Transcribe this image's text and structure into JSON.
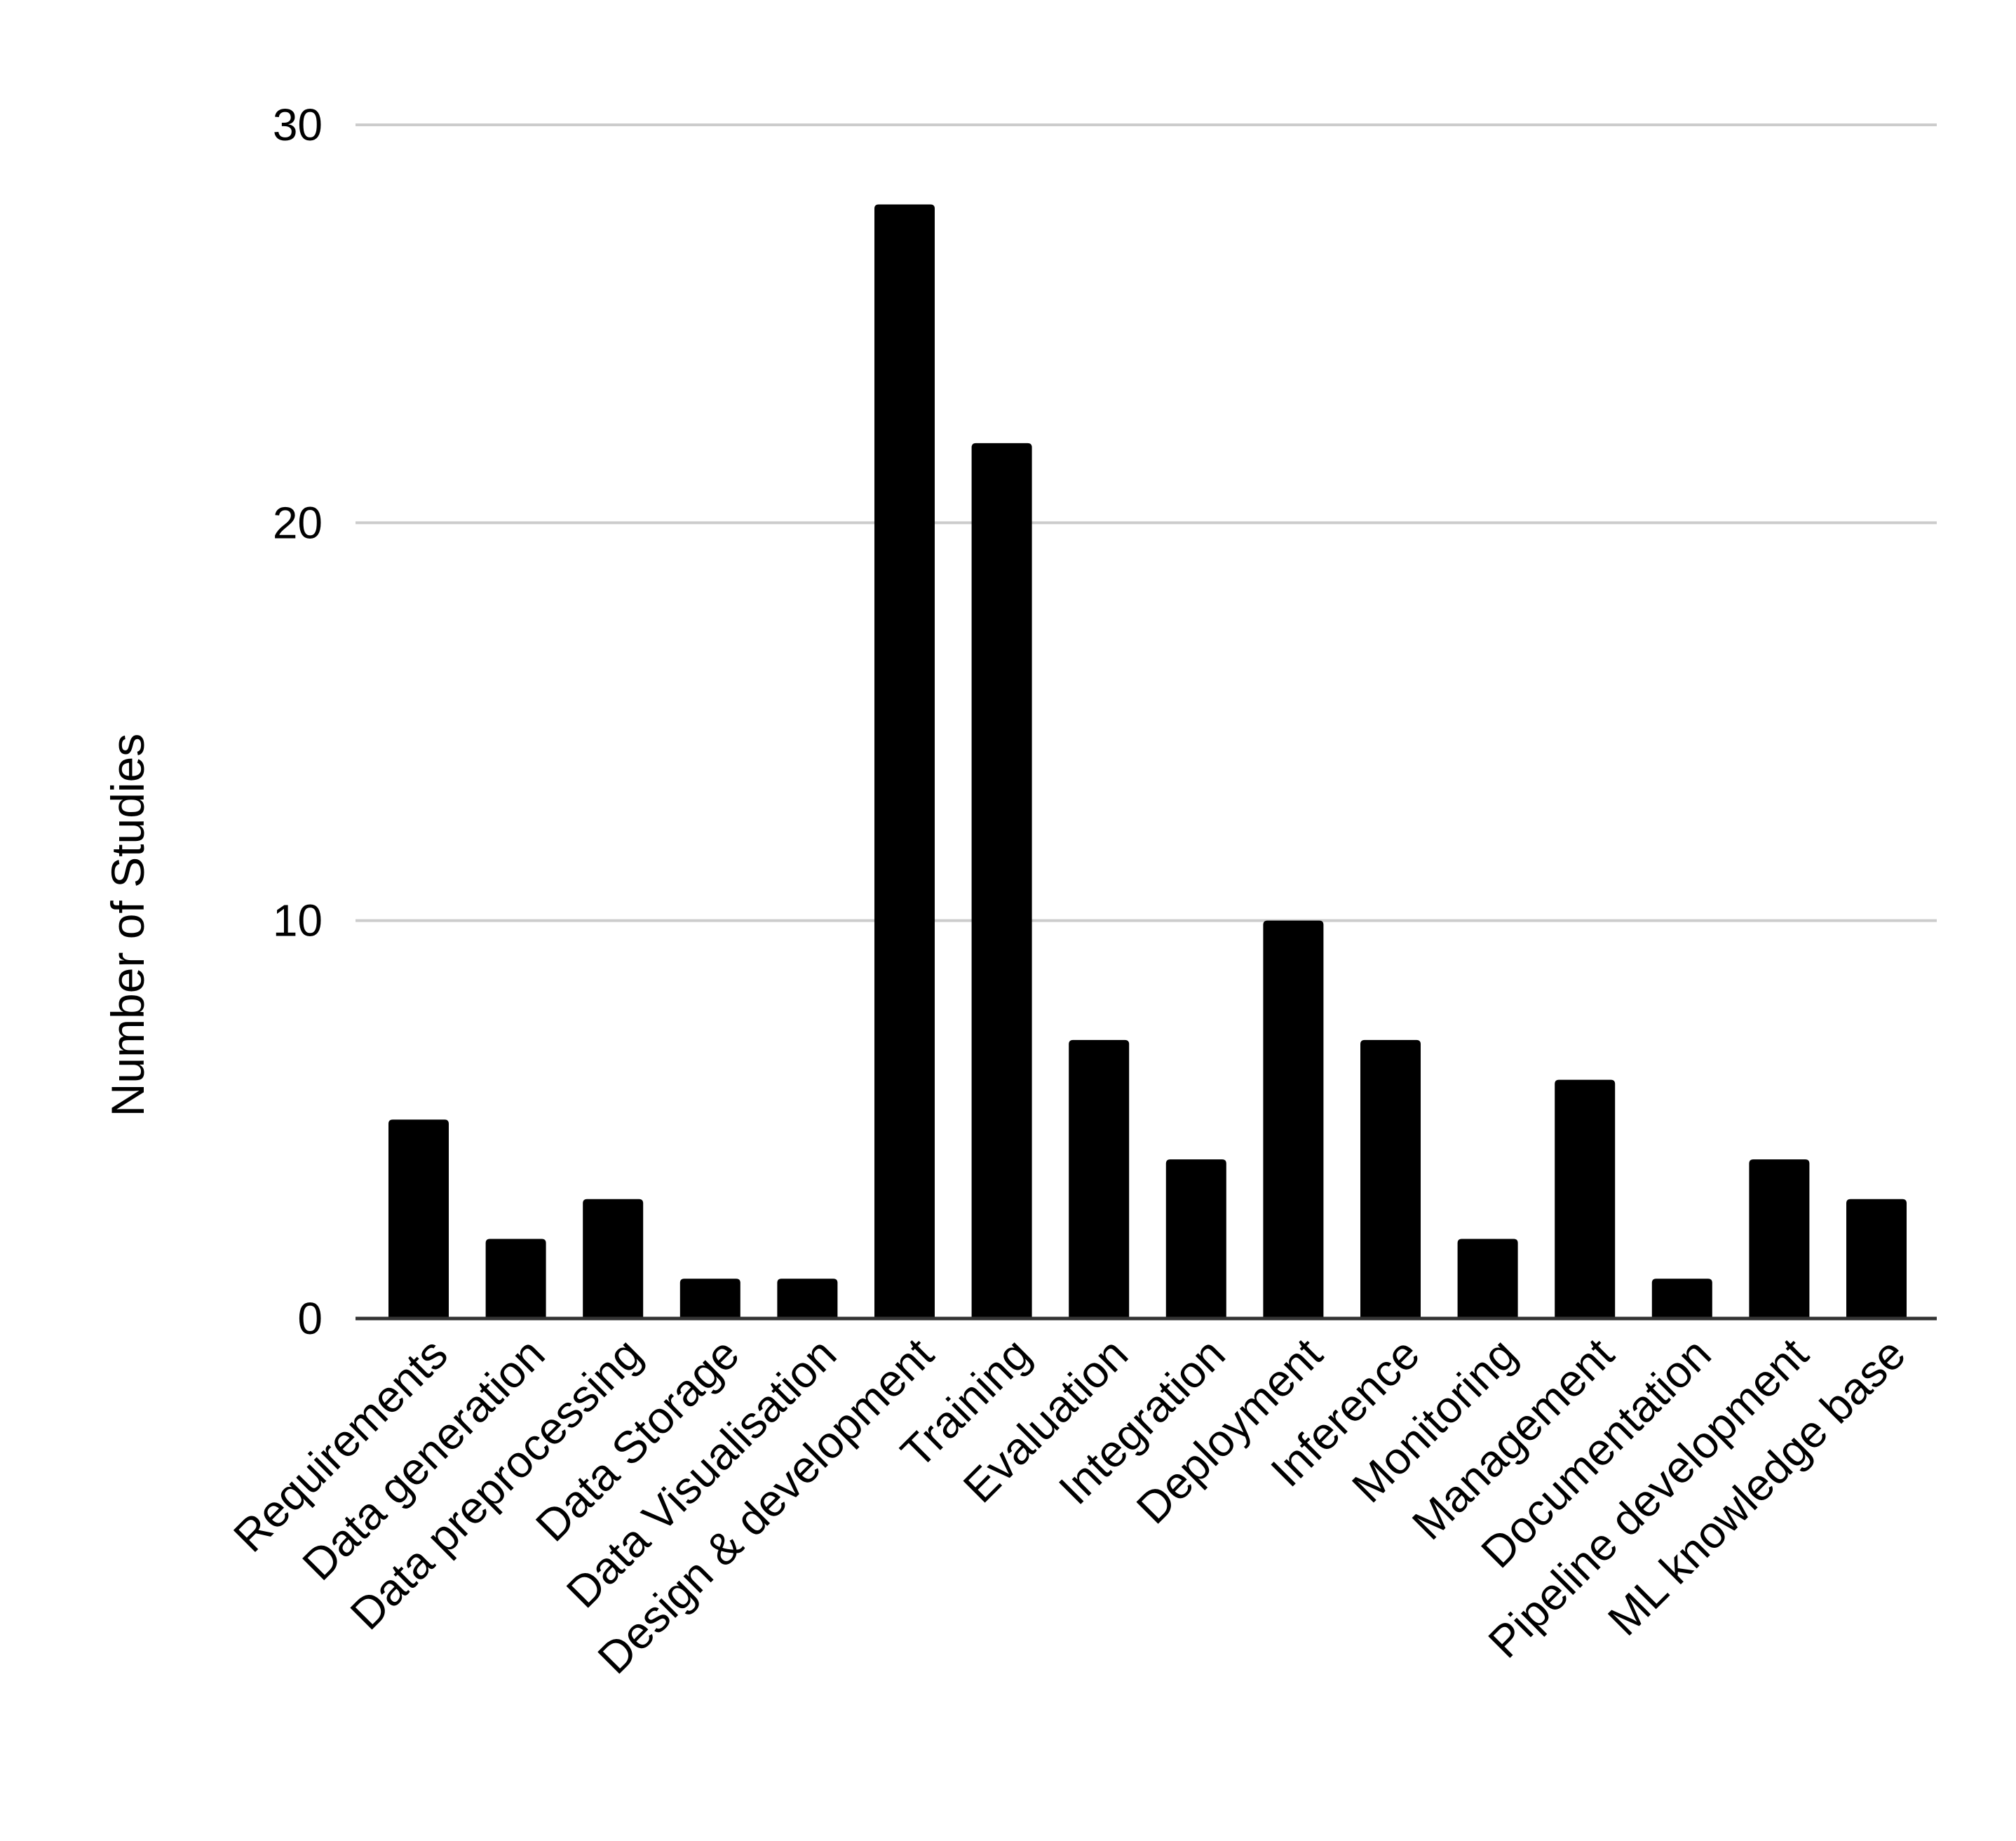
{
  "chart_data": {
    "type": "bar",
    "title": "",
    "xlabel": "",
    "ylabel": "Number of Studies",
    "ylim": [
      0,
      30
    ],
    "yticks": [
      "0",
      "10",
      "20",
      "30"
    ],
    "grid": true,
    "legend": "none",
    "categories": [
      "Requirements",
      "Data generation",
      "Data preprocessing",
      "Data Storage",
      "Data Visualisation",
      "Design & development",
      "Training",
      "Evaluation",
      "Integration",
      "Deployment",
      "Inference",
      "Monitoring",
      "Management",
      "Documentation",
      "Pipeline development",
      "ML knowledge base"
    ],
    "series": [
      {
        "values": [
          5,
          2,
          3,
          1,
          1,
          28,
          22,
          7,
          4,
          10,
          7,
          2,
          6,
          1,
          4,
          3
        ]
      }
    ],
    "colors": {
      "bar": "#000000",
      "grid": "#cccccc",
      "axis": "#333333",
      "text": "#000000"
    }
  }
}
